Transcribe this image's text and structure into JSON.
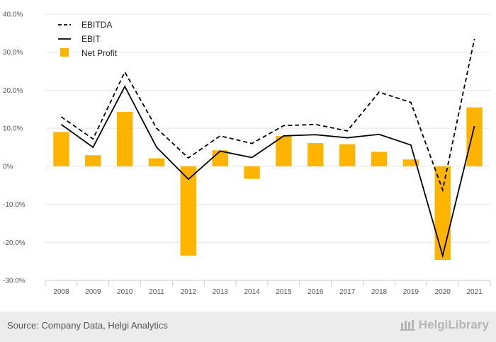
{
  "chart_data": {
    "type": "bar",
    "title": "",
    "xlabel": "",
    "ylabel": "",
    "categories": [
      "2008",
      "2009",
      "2010",
      "2011",
      "2012",
      "2013",
      "2014",
      "2015",
      "2016",
      "2017",
      "2018",
      "2019",
      "2020",
      "2021"
    ],
    "series": [
      {
        "name": "EBITDA",
        "type": "line",
        "style": "dashed",
        "color": "#000000",
        "values": [
          13.0,
          7.2,
          24.8,
          10.0,
          2.2,
          8.0,
          6.0,
          10.7,
          11.0,
          9.3,
          19.5,
          16.8,
          -6.2,
          33.5
        ]
      },
      {
        "name": "EBIT",
        "type": "line",
        "style": "solid",
        "color": "#000000",
        "values": [
          11.0,
          5.0,
          21.0,
          5.0,
          -3.4,
          4.0,
          2.3,
          8.0,
          8.3,
          7.5,
          8.4,
          5.6,
          -23.5,
          10.6
        ]
      },
      {
        "name": "Net Profit",
        "type": "bar",
        "color": "#ffb400",
        "values": [
          9.0,
          2.9,
          14.3,
          2.1,
          -23.5,
          4.2,
          -3.3,
          8.0,
          6.1,
          5.8,
          3.8,
          1.8,
          -24.6,
          15.5
        ]
      }
    ],
    "ylim": [
      -30,
      40
    ],
    "yticks": [
      -30,
      -20,
      -10,
      0,
      10,
      20,
      30,
      40
    ],
    "ytick_labels": [
      "-30.0%",
      "-20.0%",
      "-10.0%",
      "0%",
      "10.0%",
      "20.0%",
      "30.0%",
      "40.0%"
    ],
    "grid": true,
    "legend": "top-left"
  },
  "footer": {
    "source": "Source: Company Data, Helgi Analytics",
    "brand": "HelgiLibrary"
  },
  "colors": {
    "bar": "#ffb400",
    "line": "#000000",
    "grid": "#e6e6e6",
    "footer_bg": "#ececec"
  }
}
